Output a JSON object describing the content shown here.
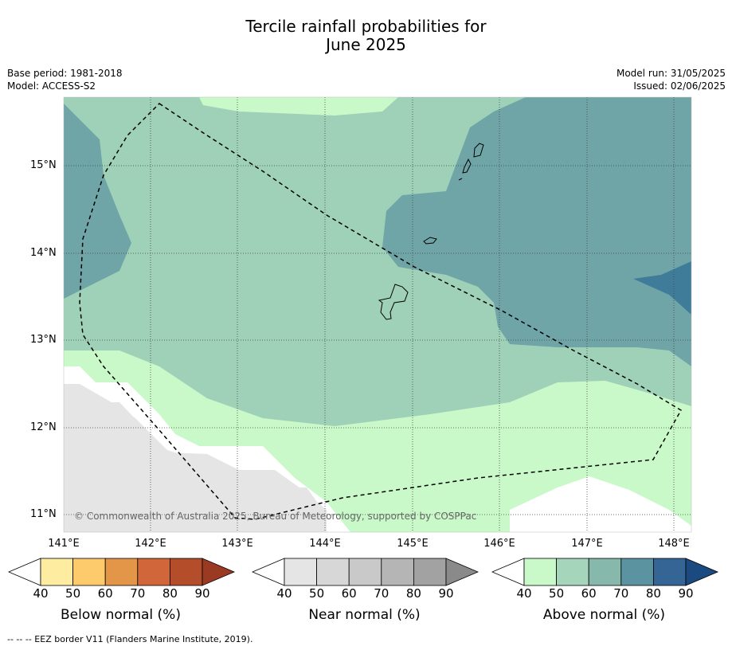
{
  "title_line1": "Tercile rainfall probabilities for",
  "title_line2": "June 2025",
  "meta_left": {
    "base_period": "Base period: 1981-2018",
    "model": "Model: ACCESS-S2"
  },
  "meta_right": {
    "model_run": "Model run: 31/05/2025",
    "issued": "Issued: 02/06/2025"
  },
  "lat_labels": [
    "15°N",
    "14°N",
    "13°N",
    "12°N",
    "11°N"
  ],
  "lon_labels": [
    "141°E",
    "142°E",
    "143°E",
    "144°E",
    "145°E",
    "146°E",
    "147°E",
    "148°E"
  ],
  "copyright": "© Commonwealth of Australia 2025, Bureau of Meteorology, supported by COSPPac",
  "colorbars": [
    {
      "name": "Below normal (%)",
      "ticks": [
        "40",
        "50",
        "60",
        "70",
        "80",
        "90"
      ],
      "colors": [
        "#ffffff",
        "#feeca0",
        "#fdcb6b",
        "#e39548",
        "#d0663a",
        "#b34d2a",
        "#9a3a22"
      ]
    },
    {
      "name": "Near normal (%)",
      "ticks": [
        "40",
        "50",
        "60",
        "70",
        "80",
        "90"
      ],
      "colors": [
        "#ffffff",
        "#e5e5e5",
        "#d7d7d7",
        "#c9c9c9",
        "#b5b5b5",
        "#a2a2a2",
        "#8a8a8a"
      ]
    },
    {
      "name": "Above normal (%)",
      "ticks": [
        "40",
        "50",
        "60",
        "70",
        "80",
        "90"
      ],
      "colors": [
        "#ffffff",
        "#c9f9c9",
        "#a5d6bb",
        "#86b8ab",
        "#5b93a0",
        "#356595",
        "#1a4a80"
      ]
    }
  ],
  "legend": {
    "eez": "--  --  -- EEZ border V11 (Flanders Marine Institute, 2019)."
  },
  "map_colors": {
    "above_40_50": "#c9f9c9",
    "above_50_60": "#9fd1b8",
    "above_60_70": "#6fa5a6",
    "above_70_80": "#3f7c9a",
    "near_40_50": "#e5e5e5",
    "nodata": "#ffffff"
  }
}
